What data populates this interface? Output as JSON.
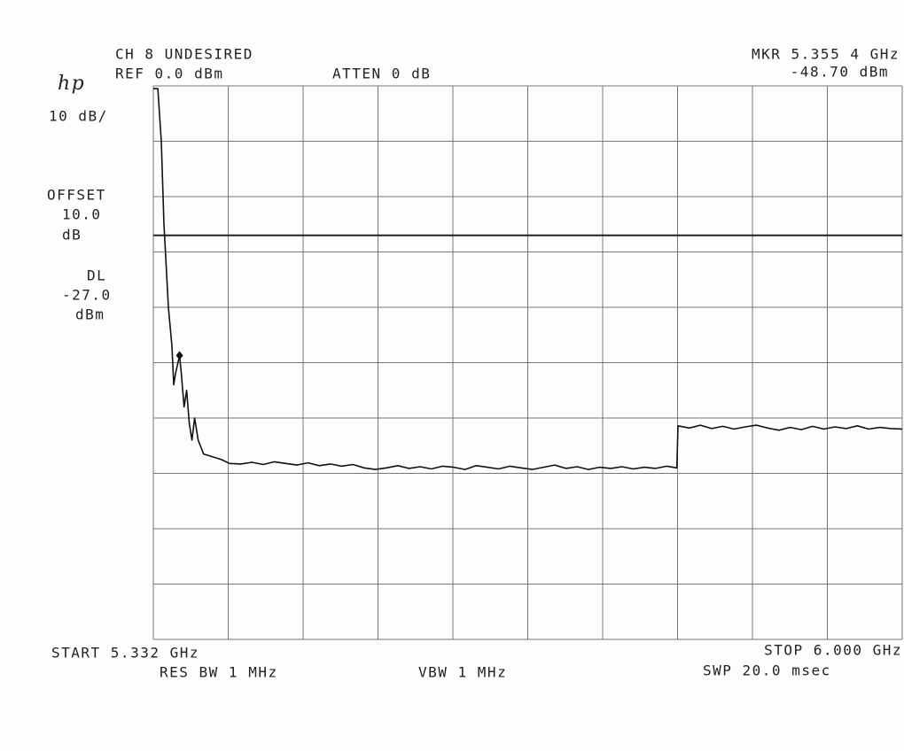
{
  "chart_data": {
    "type": "line",
    "header": {
      "channel": "CH 8 UNDESIRED",
      "ref": "REF 0.0 dBm",
      "atten": "ATTEN 0 dB",
      "marker_freq": "MKR 5.355 4 GHz",
      "marker_level": "-48.70 dBm"
    },
    "logo": "hp",
    "scale": "10 dB/",
    "offset": [
      "OFFSET",
      "10.0",
      "dB"
    ],
    "display_line_text": [
      "DL",
      "-27.0",
      "dBm"
    ],
    "footer": {
      "start": "START 5.332 GHz",
      "res_bw": "RES BW 1 MHz",
      "vbw": "VBW 1 MHz",
      "stop": "STOP 6.000 GHz",
      "sweep": "SWP 20.0 msec"
    },
    "xlim": [
      5.332,
      6.0
    ],
    "ylim": [
      -100,
      0
    ],
    "xticks": [
      5.332,
      5.3988,
      5.4656,
      5.5324,
      5.5992,
      5.666,
      5.7328,
      5.7996,
      5.8664,
      5.9332,
      6.0
    ],
    "yticks": [
      -100,
      -90,
      -80,
      -70,
      -60,
      -50,
      -40,
      -30,
      -20,
      -10,
      0
    ],
    "grid": true,
    "display_line": -27,
    "marker": {
      "x": 5.3554,
      "y": -48.7
    },
    "series": [
      {
        "color": "#111111",
        "x": [
          5.332,
          5.336,
          5.3391,
          5.3415,
          5.3454,
          5.3486,
          5.3502,
          5.3518,
          5.3554,
          5.357,
          5.3594,
          5.3617,
          5.3641,
          5.3665,
          5.3688,
          5.372,
          5.3768,
          5.3847,
          5.3926,
          5.4,
          5.41,
          5.42,
          5.43,
          5.44,
          5.45,
          5.46,
          5.47,
          5.48,
          5.49,
          5.5,
          5.51,
          5.52,
          5.53,
          5.54,
          5.55,
          5.56,
          5.57,
          5.58,
          5.59,
          5.6,
          5.61,
          5.62,
          5.63,
          5.64,
          5.65,
          5.66,
          5.67,
          5.68,
          5.69,
          5.7,
          5.71,
          5.72,
          5.73,
          5.74,
          5.75,
          5.76,
          5.77,
          5.78,
          5.79,
          5.799,
          5.8,
          5.81,
          5.82,
          5.83,
          5.84,
          5.85,
          5.86,
          5.87,
          5.88,
          5.89,
          5.9,
          5.91,
          5.92,
          5.93,
          5.94,
          5.95,
          5.96,
          5.97,
          5.98,
          5.99,
          6.0
        ],
        "values": [
          -0.5,
          -0.5,
          -10,
          -25,
          -40,
          -47,
          -54,
          -52,
          -48.7,
          -52,
          -58,
          -55,
          -61,
          -64,
          -60,
          -64,
          -66.5,
          -67,
          -67.5,
          -68.2,
          -68.3,
          -68,
          -68.4,
          -67.9,
          -68.2,
          -68.5,
          -68.1,
          -68.6,
          -68.3,
          -68.7,
          -68.4,
          -69,
          -69.3,
          -69,
          -68.6,
          -69.1,
          -68.8,
          -69.2,
          -68.7,
          -68.9,
          -69.3,
          -68.6,
          -68.9,
          -69.2,
          -68.7,
          -69,
          -69.3,
          -68.9,
          -68.5,
          -69.1,
          -68.8,
          -69.3,
          -68.9,
          -69.1,
          -68.8,
          -69.2,
          -68.9,
          -69.1,
          -68.7,
          -69,
          -61.4,
          -61.8,
          -61.3,
          -61.9,
          -61.5,
          -62,
          -61.6,
          -61.3,
          -61.8,
          -62.2,
          -61.7,
          -62.1,
          -61.5,
          -62,
          -61.6,
          -61.9,
          -61.4,
          -62,
          -61.7,
          -61.9,
          -62
        ]
      }
    ]
  }
}
